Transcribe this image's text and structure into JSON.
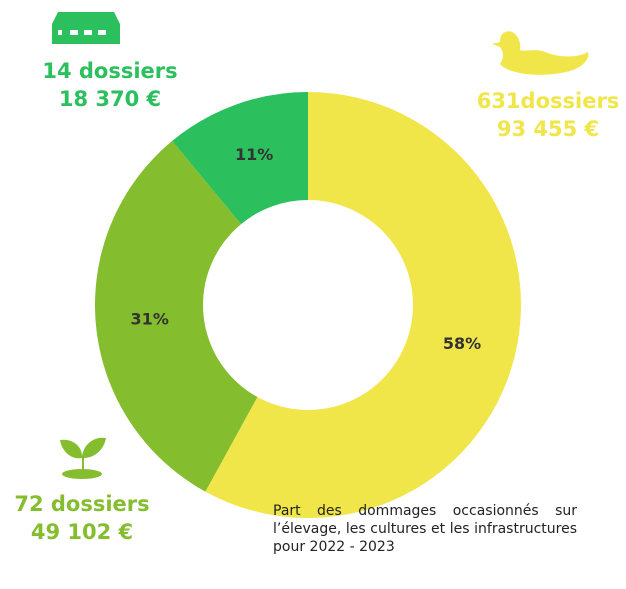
{
  "chart_data": {
    "type": "pie",
    "donut": true,
    "values": [
      58,
      31,
      11
    ],
    "value_labels": [
      "58%",
      "31%",
      "11%"
    ],
    "colors": [
      "#f0e64a",
      "#84bd2e",
      "#2bbf5e"
    ],
    "annotations": [
      [
        "631dossiers",
        "93 455 €"
      ],
      [
        "72 dossiers",
        "49 102 €"
      ],
      [
        "14 dossiers",
        "18 370 €"
      ]
    ],
    "caption": "Part des dommages occasionnés sur l’élevage, les cultures et les infrastructures pour 2022 - 2023"
  }
}
